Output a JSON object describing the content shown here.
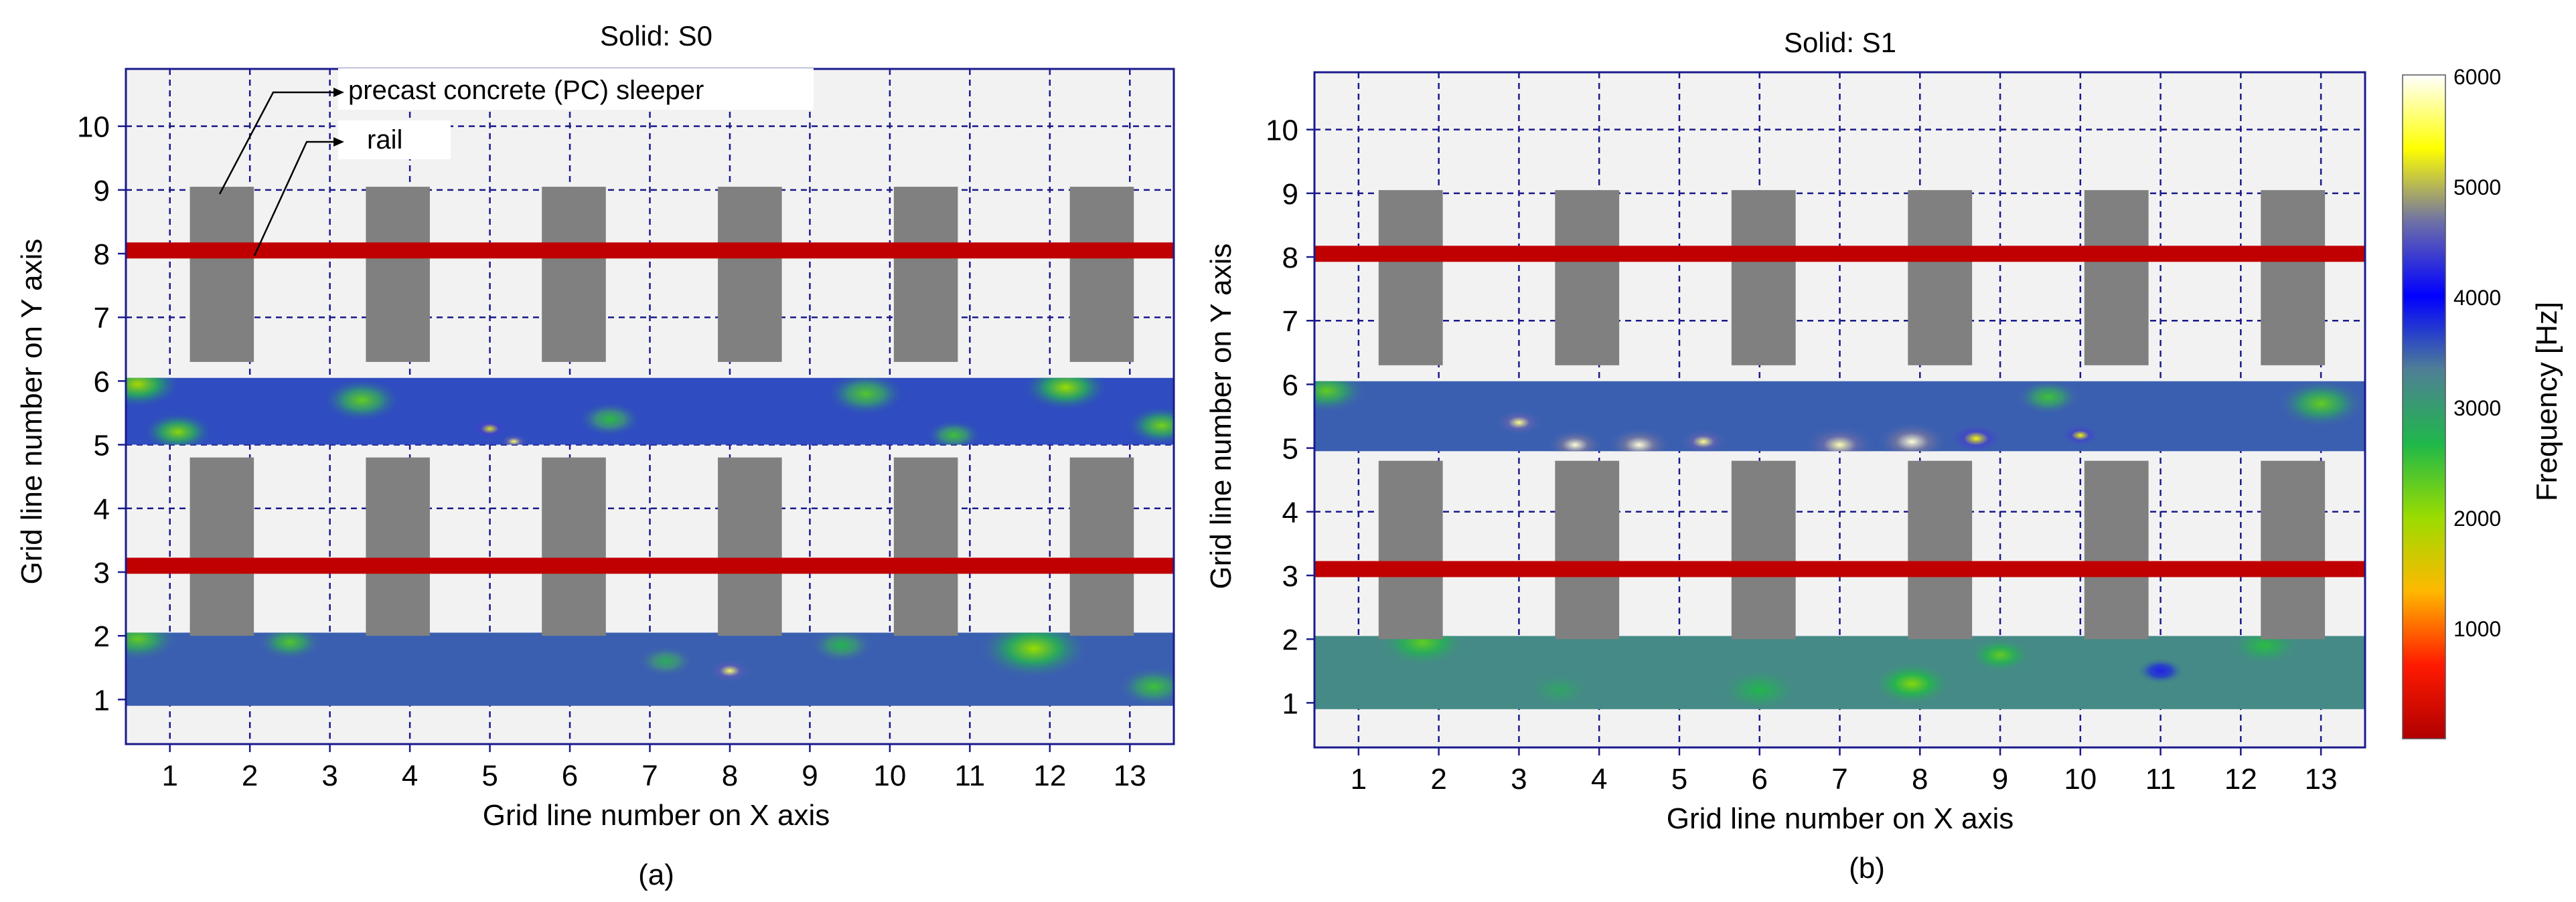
{
  "colorbar": {
    "label": "Frequency [Hz]",
    "ticks": [
      "6000",
      "5000",
      "4000",
      "3000",
      "2000",
      "1000"
    ],
    "min": 0,
    "max": 6000,
    "stops": [
      "#b00000",
      "#ff1a00",
      "#ffb800",
      "#9bdc00",
      "#1fb84a",
      "#4f7f96",
      "#0000ff",
      "#6d6fa8",
      "#ffff00",
      "#ffffff"
    ]
  },
  "annotations": {
    "sleeper": "precast concrete (PC) sleeper",
    "rail": "rail"
  },
  "colors": {
    "sleeper": "#808080",
    "rail": "#c00000",
    "plot_bg": "#f2f2f2",
    "frame": "#1a1a8c",
    "grid": "#1a1a8c"
  },
  "chart_data": [
    {
      "type": "heatmap",
      "title": "Solid: S0",
      "subplot_label": "(a)",
      "xlabel": "Grid line number on X axis",
      "ylabel": "Grid line number on Y axis",
      "xticks": [
        "1",
        "2",
        "3",
        "4",
        "5",
        "6",
        "7",
        "8",
        "9",
        "10",
        "11",
        "12",
        "13"
      ],
      "yticks": [
        "1",
        "2",
        "3",
        "4",
        "5",
        "6",
        "7",
        "8",
        "9",
        "10"
      ],
      "xlim": [
        0.45,
        13.55
      ],
      "ylim": [
        0.3,
        10.9
      ],
      "grid": true,
      "rails": [
        8.05,
        3.1
      ],
      "sleepers": [
        {
          "x": [
            1.25,
            2.05
          ],
          "y": [
            6.3,
            9.05
          ]
        },
        {
          "x": [
            3.45,
            4.25
          ],
          "y": [
            6.3,
            9.05
          ]
        },
        {
          "x": [
            5.65,
            6.45
          ],
          "y": [
            6.3,
            9.05
          ]
        },
        {
          "x": [
            7.85,
            8.65
          ],
          "y": [
            6.3,
            9.05
          ]
        },
        {
          "x": [
            10.05,
            10.85
          ],
          "y": [
            6.3,
            9.05
          ]
        },
        {
          "x": [
            12.25,
            13.05
          ],
          "y": [
            6.3,
            9.05
          ]
        },
        {
          "x": [
            1.25,
            2.05
          ],
          "y": [
            2.0,
            4.8
          ]
        },
        {
          "x": [
            3.45,
            4.25
          ],
          "y": [
            2.0,
            4.8
          ]
        },
        {
          "x": [
            5.65,
            6.45
          ],
          "y": [
            2.0,
            4.8
          ]
        },
        {
          "x": [
            7.85,
            8.65
          ],
          "y": [
            2.0,
            4.8
          ]
        },
        {
          "x": [
            10.05,
            10.85
          ],
          "y": [
            2.0,
            4.8
          ]
        },
        {
          "x": [
            12.25,
            13.05
          ],
          "y": [
            2.0,
            4.8
          ]
        }
      ],
      "measurement_bands": [
        {
          "y": [
            5,
            6.05
          ],
          "base_hz": 3600,
          "hotspots": [
            {
              "x": 0.6,
              "y": 5.95,
              "hz": 1900,
              "r": 0.55
            },
            {
              "x": 1.1,
              "y": 5.2,
              "hz": 2100,
              "r": 0.45
            },
            {
              "x": 3.4,
              "y": 5.7,
              "hz": 2300,
              "r": 0.5
            },
            {
              "x": 5.0,
              "y": 5.25,
              "hz": 5200,
              "r": 0.25
            },
            {
              "x": 5.3,
              "y": 5.05,
              "hz": 5600,
              "r": 0.18
            },
            {
              "x": 6.5,
              "y": 5.4,
              "hz": 2600,
              "r": 0.4
            },
            {
              "x": 9.7,
              "y": 5.8,
              "hz": 2400,
              "r": 0.5
            },
            {
              "x": 10.8,
              "y": 5.15,
              "hz": 2500,
              "r": 0.35
            },
            {
              "x": 12.2,
              "y": 5.9,
              "hz": 2000,
              "r": 0.55
            },
            {
              "x": 13.4,
              "y": 5.3,
              "hz": 2200,
              "r": 0.45
            }
          ]
        },
        {
          "y": [
            0.9,
            2.05
          ],
          "base_hz": 3500,
          "hotspots": [
            {
              "x": 0.6,
              "y": 1.95,
              "hz": 2300,
              "r": 0.5
            },
            {
              "x": 2.5,
              "y": 1.9,
              "hz": 2400,
              "r": 0.4
            },
            {
              "x": 7.2,
              "y": 1.6,
              "hz": 2800,
              "r": 0.35
            },
            {
              "x": 8.0,
              "y": 1.45,
              "hz": 5600,
              "r": 0.28
            },
            {
              "x": 9.4,
              "y": 1.85,
              "hz": 2700,
              "r": 0.4
            },
            {
              "x": 11.8,
              "y": 1.8,
              "hz": 2000,
              "r": 0.7
            },
            {
              "x": 13.3,
              "y": 1.2,
              "hz": 2500,
              "r": 0.45
            }
          ]
        }
      ]
    },
    {
      "type": "heatmap",
      "title": "Solid: S1",
      "subplot_label": "(b)",
      "xlabel": "Grid line number on X axis",
      "ylabel": "Grid line number on Y axis",
      "xticks": [
        "1",
        "2",
        "3",
        "4",
        "5",
        "6",
        "7",
        "8",
        "9",
        "10",
        "11",
        "12",
        "13"
      ],
      "yticks": [
        "1",
        "2",
        "3",
        "4",
        "5",
        "6",
        "7",
        "8",
        "9",
        "10"
      ],
      "xlim": [
        0.45,
        13.55
      ],
      "ylim": [
        0.3,
        10.9
      ],
      "grid": true,
      "rails": [
        8.05,
        3.1
      ],
      "sleepers": [
        {
          "x": [
            1.25,
            2.05
          ],
          "y": [
            6.3,
            9.05
          ]
        },
        {
          "x": [
            3.45,
            4.25
          ],
          "y": [
            6.3,
            9.05
          ]
        },
        {
          "x": [
            5.65,
            6.45
          ],
          "y": [
            6.3,
            9.05
          ]
        },
        {
          "x": [
            7.85,
            8.65
          ],
          "y": [
            6.3,
            9.05
          ]
        },
        {
          "x": [
            10.05,
            10.85
          ],
          "y": [
            6.3,
            9.05
          ]
        },
        {
          "x": [
            12.25,
            13.05
          ],
          "y": [
            6.3,
            9.05
          ]
        },
        {
          "x": [
            1.25,
            2.05
          ],
          "y": [
            2.0,
            4.8
          ]
        },
        {
          "x": [
            3.45,
            4.25
          ],
          "y": [
            2.0,
            4.8
          ]
        },
        {
          "x": [
            5.65,
            6.45
          ],
          "y": [
            2.0,
            4.8
          ]
        },
        {
          "x": [
            7.85,
            8.65
          ],
          "y": [
            2.0,
            4.8
          ]
        },
        {
          "x": [
            10.05,
            10.85
          ],
          "y": [
            2.0,
            4.8
          ]
        },
        {
          "x": [
            12.25,
            13.05
          ],
          "y": [
            2.0,
            4.8
          ]
        }
      ],
      "measurement_bands": [
        {
          "y": [
            4.95,
            6.05
          ],
          "base_hz": 3500,
          "hotspots": [
            {
              "x": 0.6,
              "y": 5.9,
              "hz": 2300,
              "r": 0.5
            },
            {
              "x": 3.0,
              "y": 5.4,
              "hz": 5700,
              "r": 0.3
            },
            {
              "x": 3.7,
              "y": 5.05,
              "hz": 5900,
              "r": 0.35
            },
            {
              "x": 4.5,
              "y": 5.05,
              "hz": 5900,
              "r": 0.4
            },
            {
              "x": 5.3,
              "y": 5.1,
              "hz": 5700,
              "r": 0.3
            },
            {
              "x": 7.0,
              "y": 5.05,
              "hz": 5800,
              "r": 0.45
            },
            {
              "x": 7.9,
              "y": 5.1,
              "hz": 5900,
              "r": 0.45
            },
            {
              "x": 8.7,
              "y": 5.15,
              "hz": 5300,
              "r": 0.35
            },
            {
              "x": 10.0,
              "y": 5.2,
              "hz": 5300,
              "r": 0.25
            },
            {
              "x": 9.6,
              "y": 5.8,
              "hz": 2500,
              "r": 0.4
            },
            {
              "x": 13.0,
              "y": 5.7,
              "hz": 2300,
              "r": 0.55
            }
          ]
        },
        {
          "y": [
            0.9,
            2.05
          ],
          "base_hz": 3200,
          "hotspots": [
            {
              "x": 1.8,
              "y": 1.95,
              "hz": 2300,
              "r": 0.55
            },
            {
              "x": 6.0,
              "y": 1.2,
              "hz": 2700,
              "r": 0.5
            },
            {
              "x": 7.9,
              "y": 1.3,
              "hz": 2100,
              "r": 0.5
            },
            {
              "x": 9.0,
              "y": 1.75,
              "hz": 2300,
              "r": 0.4
            },
            {
              "x": 11.0,
              "y": 1.5,
              "hz": 4200,
              "r": 0.3
            },
            {
              "x": 12.3,
              "y": 1.9,
              "hz": 2600,
              "r": 0.45
            },
            {
              "x": 3.5,
              "y": 1.2,
              "hz": 2900,
              "r": 0.4
            }
          ]
        }
      ]
    }
  ]
}
